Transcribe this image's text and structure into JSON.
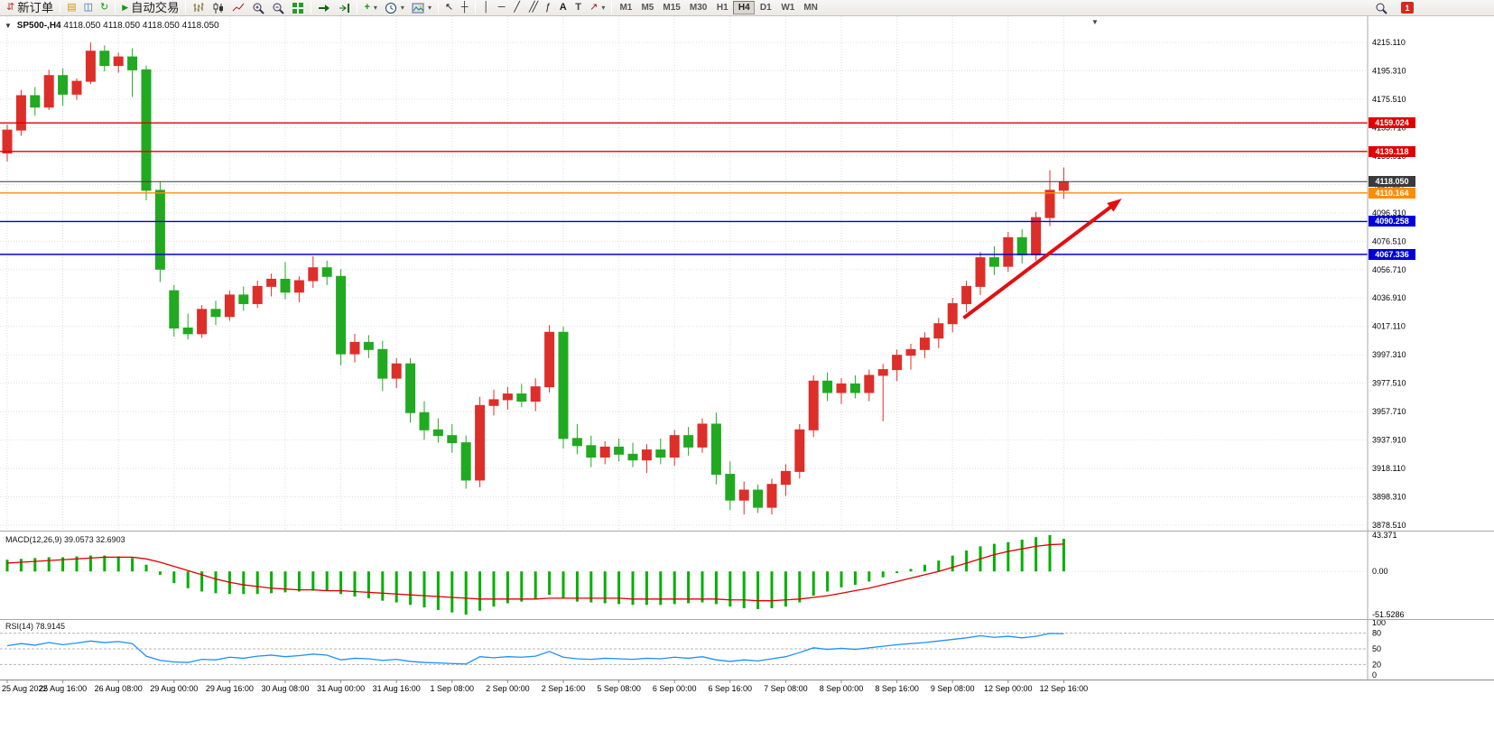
{
  "toolbar": {
    "new_order_label": "新订单",
    "auto_trading_label": "自动交易",
    "timeframes": [
      "M1",
      "M5",
      "M15",
      "M30",
      "H1",
      "H4",
      "D1",
      "W1",
      "MN"
    ],
    "active_timeframe": "H4",
    "notification_badge": "1"
  },
  "icons": {
    "new_order": "⇵",
    "new_chart": "▤",
    "profiles": "◫",
    "refresh": "↻",
    "play": "▶",
    "indicators_plus": "+",
    "dropdown": "▾",
    "cursor": "↖",
    "crosshair": "┼",
    "vline": "│",
    "hline": "─",
    "trendline": "╱",
    "channel": "╱╱",
    "fibonacci": "ƒ",
    "text_tool": "A",
    "label_tool": "T",
    "arrow_tool": "↗",
    "header_collapse": "▼",
    "shift_marker": "▼"
  },
  "chart": {
    "title_symbol": "SP500-,H4",
    "title_quotes": "4118.050 4118.050 4118.050 4118.050"
  },
  "chart_data": {
    "type": "candlestick",
    "symbol": "SP500-",
    "timeframe": "H4",
    "bull_color": "#dd2f2a",
    "bear_color": "#21aa21",
    "x_label_interval": 4,
    "x_labels": [
      "25 Aug 2022",
      "25 Aug 16:00",
      "26 Aug 08:00",
      "29 Aug 00:00",
      "29 Aug 16:00",
      "30 Aug 08:00",
      "31 Aug 00:00",
      "31 Aug 16:00",
      "1 Sep 08:00",
      "2 Sep 00:00",
      "2 Sep 16:00",
      "5 Sep 08:00",
      "6 Sep 00:00",
      "6 Sep 16:00",
      "7 Sep 08:00",
      "8 Sep 00:00",
      "8 Sep 16:00",
      "9 Sep 08:00",
      "12 Sep 00:00",
      "12 Sep 16:00"
    ],
    "price_axis": {
      "ticks": [
        "4215.110",
        "4195.310",
        "4175.510",
        "4155.710",
        "4135.910",
        "4116.110",
        "4096.310",
        "4076.510",
        "4056.710",
        "4036.910",
        "4017.110",
        "3997.310",
        "3977.510",
        "3957.710",
        "3937.910",
        "3918.110",
        "3898.310",
        "3878.510"
      ]
    },
    "candles": [
      [
        4138,
        4158,
        4132,
        4154
      ],
      [
        4154,
        4182,
        4150,
        4178
      ],
      [
        4178,
        4184,
        4164,
        4170
      ],
      [
        4170,
        4196,
        4168,
        4192
      ],
      [
        4192,
        4197,
        4171,
        4179
      ],
      [
        4179,
        4190,
        4175,
        4188
      ],
      [
        4188,
        4215,
        4186,
        4209
      ],
      [
        4209,
        4213,
        4195,
        4199
      ],
      [
        4199,
        4208,
        4194,
        4205
      ],
      [
        4205,
        4211,
        4177,
        4196
      ],
      [
        4196,
        4199,
        4105,
        4112
      ],
      [
        4112,
        4118,
        4048,
        4057
      ],
      [
        4042,
        4046,
        4010,
        4016
      ],
      [
        4016,
        4026,
        4008,
        4012
      ],
      [
        4012,
        4032,
        4009,
        4029
      ],
      [
        4029,
        4035,
        4018,
        4024
      ],
      [
        4024,
        4042,
        4021,
        4039
      ],
      [
        4039,
        4045,
        4028,
        4033
      ],
      [
        4033,
        4049,
        4030,
        4045
      ],
      [
        4045,
        4054,
        4038,
        4050
      ],
      [
        4050,
        4062,
        4036,
        4041
      ],
      [
        4041,
        4052,
        4034,
        4049
      ],
      [
        4049,
        4066,
        4044,
        4058
      ],
      [
        4058,
        4063,
        4046,
        4052
      ],
      [
        4052,
        4057,
        3990,
        3998
      ],
      [
        3998,
        4012,
        3992,
        4006
      ],
      [
        4006,
        4011,
        3995,
        4001
      ],
      [
        4001,
        4007,
        3972,
        3981
      ],
      [
        3981,
        3995,
        3974,
        3991
      ],
      [
        3991,
        3995,
        3950,
        3957
      ],
      [
        3957,
        3965,
        3938,
        3945
      ],
      [
        3945,
        3953,
        3936,
        3941
      ],
      [
        3941,
        3949,
        3929,
        3936
      ],
      [
        3936,
        3941,
        3904,
        3910
      ],
      [
        3910,
        3968,
        3905,
        3962
      ],
      [
        3962,
        3973,
        3955,
        3966
      ],
      [
        3966,
        3975,
        3959,
        3970
      ],
      [
        3970,
        3977,
        3961,
        3965
      ],
      [
        3965,
        3981,
        3958,
        3975
      ],
      [
        3975,
        4018,
        3971,
        4013
      ],
      [
        4013,
        4017,
        3932,
        3939
      ],
      [
        3939,
        3949,
        3928,
        3934
      ],
      [
        3934,
        3941,
        3919,
        3926
      ],
      [
        3926,
        3937,
        3921,
        3933
      ],
      [
        3933,
        3939,
        3923,
        3928
      ],
      [
        3928,
        3936,
        3919,
        3924
      ],
      [
        3924,
        3935,
        3915,
        3931
      ],
      [
        3931,
        3939,
        3921,
        3926
      ],
      [
        3926,
        3945,
        3920,
        3941
      ],
      [
        3941,
        3947,
        3927,
        3933
      ],
      [
        3933,
        3953,
        3929,
        3949
      ],
      [
        3949,
        3957,
        3907,
        3914
      ],
      [
        3914,
        3923,
        3889,
        3896
      ],
      [
        3896,
        3909,
        3886,
        3903
      ],
      [
        3903,
        3907,
        3887,
        3891
      ],
      [
        3891,
        3911,
        3886,
        3907
      ],
      [
        3907,
        3921,
        3899,
        3916
      ],
      [
        3916,
        3949,
        3911,
        3945
      ],
      [
        3945,
        3983,
        3940,
        3979
      ],
      [
        3979,
        3985,
        3965,
        3971
      ],
      [
        3971,
        3981,
        3963,
        3977
      ],
      [
        3977,
        3983,
        3967,
        3971
      ],
      [
        3971,
        3987,
        3965,
        3983
      ],
      [
        3983,
        3991,
        3951,
        3987
      ],
      [
        3987,
        4001,
        3979,
        3997
      ],
      [
        3997,
        4005,
        3987,
        4001
      ],
      [
        4001,
        4013,
        3995,
        4009
      ],
      [
        4009,
        4023,
        4002,
        4019
      ],
      [
        4019,
        4037,
        4013,
        4033
      ],
      [
        4033,
        4049,
        4027,
        4045
      ],
      [
        4045,
        4069,
        4039,
        4065
      ],
      [
        4065,
        4073,
        4053,
        4059
      ],
      [
        4059,
        4083,
        4055,
        4079
      ],
      [
        4079,
        4085,
        4061,
        4067
      ],
      [
        4067,
        4097,
        4063,
        4093
      ],
      [
        4093,
        4126,
        4087,
        4112
      ],
      [
        4112,
        4128,
        4106,
        4118.05
      ]
    ],
    "hlines": [
      {
        "price": 4159.024,
        "label": "4159.024",
        "color": "#e00000",
        "width": 1.4
      },
      {
        "price": 4139.118,
        "label": "4139.118",
        "color": "#e00000",
        "width": 1.4
      },
      {
        "price": 4118.05,
        "label": "4118.050",
        "color": "#3a3a3a",
        "width": 1,
        "role": "current-price"
      },
      {
        "price": 4110.164,
        "label": "4110.164",
        "color": "#ff8c00",
        "width": 1.4
      },
      {
        "price": 4090.258,
        "label": "4090.258",
        "color": "#0000d8",
        "width": 1.4
      },
      {
        "price": 4067.336,
        "label": "4067.336",
        "color": "#0000d8",
        "width": 1.4
      }
    ],
    "arrow": {
      "from_index": 68.8,
      "from_price": 4023,
      "to_index": 79.6,
      "to_price": 4102,
      "color": "#e01010"
    },
    "macd": {
      "name": "MACD(12,26,9)",
      "value_main": "39.0573",
      "value_signal": "32.6903",
      "axis_labels": [
        "43.371",
        "0.00",
        "-51.5286"
      ],
      "max": 43.371,
      "min": -51.5286,
      "histogram_color": "#00b000",
      "signal_color": "#e00000",
      "histogram": [
        14,
        15,
        16,
        17,
        17,
        18,
        19,
        19,
        18,
        16,
        8,
        -4,
        -14,
        -20,
        -24,
        -26,
        -27,
        -27,
        -27,
        -26,
        -25,
        -24,
        -23,
        -23,
        -27,
        -30,
        -32,
        -35,
        -37,
        -40,
        -43,
        -46,
        -49,
        -51.53,
        -47,
        -42,
        -38,
        -36,
        -33,
        -28,
        -32,
        -36,
        -37,
        -38,
        -39,
        -40,
        -40,
        -40,
        -39,
        -38,
        -37,
        -39,
        -42,
        -44,
        -45,
        -44,
        -42,
        -37,
        -29,
        -24,
        -19,
        -16,
        -12,
        -7,
        -2,
        3,
        8,
        13,
        19,
        25,
        30,
        33,
        35,
        38,
        41,
        43.37,
        39.06
      ],
      "signal": [
        10,
        11,
        12,
        13,
        14,
        15,
        16,
        17,
        17,
        17,
        15,
        11,
        6,
        1,
        -4,
        -9,
        -13,
        -16,
        -18,
        -20,
        -21,
        -22,
        -22,
        -23,
        -23,
        -24,
        -25,
        -26,
        -27,
        -28,
        -29,
        -30,
        -31,
        -32,
        -33,
        -33,
        -33,
        -33,
        -33,
        -32,
        -32,
        -32,
        -32,
        -32,
        -32,
        -33,
        -33,
        -33,
        -33,
        -33,
        -33,
        -33,
        -34,
        -34,
        -35,
        -35,
        -34,
        -33,
        -31,
        -29,
        -26,
        -23,
        -20,
        -16,
        -12,
        -8,
        -4,
        0,
        5,
        10,
        15,
        20,
        24,
        27,
        30,
        32,
        32.69
      ]
    },
    "rsi": {
      "name": "RSI(14)",
      "value": "78.9145",
      "axis_labels": [
        "100",
        "80",
        "50",
        "20",
        "0"
      ],
      "axis_values": [
        100,
        80,
        50,
        20,
        0
      ],
      "levels": [
        80,
        50,
        20
      ],
      "color": "#1e90ff",
      "values": [
        56,
        60,
        57,
        62,
        58,
        61,
        65,
        62,
        64,
        60,
        36,
        28,
        25,
        24,
        30,
        29,
        34,
        32,
        36,
        38,
        35,
        37,
        40,
        38,
        29,
        32,
        31,
        28,
        30,
        26,
        24,
        23,
        22,
        21,
        35,
        33,
        35,
        34,
        36,
        45,
        34,
        31,
        30,
        32,
        31,
        30,
        32,
        31,
        34,
        32,
        35,
        29,
        26,
        29,
        27,
        31,
        35,
        43,
        52,
        49,
        51,
        49,
        52,
        55,
        58,
        60,
        62,
        65,
        68,
        71,
        75,
        72,
        74,
        71,
        74,
        79.5,
        78.91
      ]
    }
  }
}
